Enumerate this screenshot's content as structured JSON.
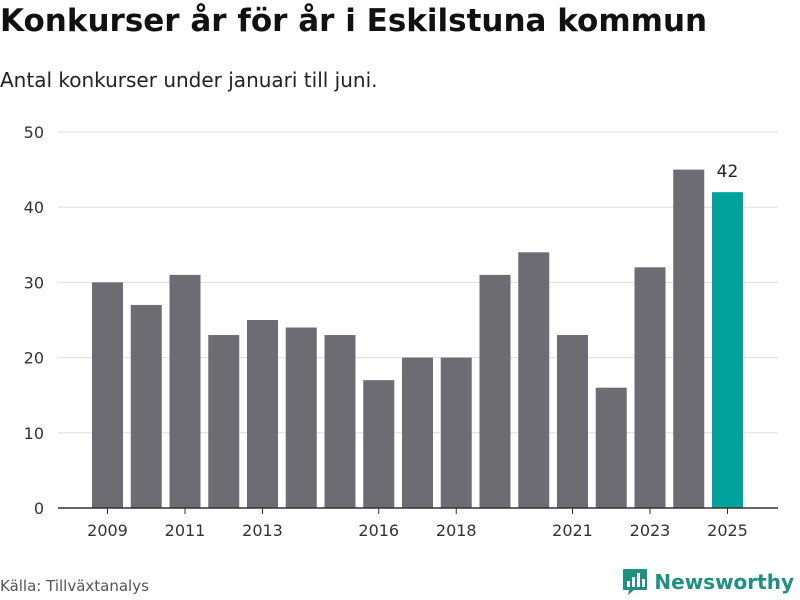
{
  "header": {
    "title": "Konkurser år för år i Eskilstuna kommun",
    "subtitle": "Antal konkurser under januari till juni."
  },
  "chart_data": {
    "type": "bar",
    "title": "Konkurser år för år i Eskilstuna kommun",
    "subtitle": "Antal konkurser under januari till juni.",
    "xlabel": "",
    "ylabel": "",
    "categories": [
      "2009",
      "2010",
      "2011",
      "2012",
      "2013",
      "2014",
      "2015",
      "2016",
      "2017",
      "2018",
      "2019",
      "2020",
      "2021",
      "2022",
      "2023",
      "2024",
      "2025"
    ],
    "values": [
      30,
      27,
      31,
      23,
      25,
      24,
      23,
      17,
      20,
      20,
      31,
      34,
      23,
      16,
      32,
      45,
      42
    ],
    "x_tick_labels": [
      "2009",
      "2011",
      "2013",
      "2016",
      "2018",
      "2021",
      "2023",
      "2025"
    ],
    "y_ticks": [
      0,
      10,
      20,
      30,
      40,
      50
    ],
    "ylim": [
      0,
      50
    ],
    "grid": "horizontal",
    "bar_color": "#6d6c72",
    "highlight_color": "#00a39b",
    "highlight_category": "2025",
    "data_labels": [
      {
        "category": "2025",
        "text": "42"
      }
    ]
  },
  "footer": {
    "source": "Källa: Tillväxtanalys",
    "brand": "Newsworthy",
    "brand_color": "#1f8f82",
    "brand_icon": "bar-chart-logo-icon"
  }
}
